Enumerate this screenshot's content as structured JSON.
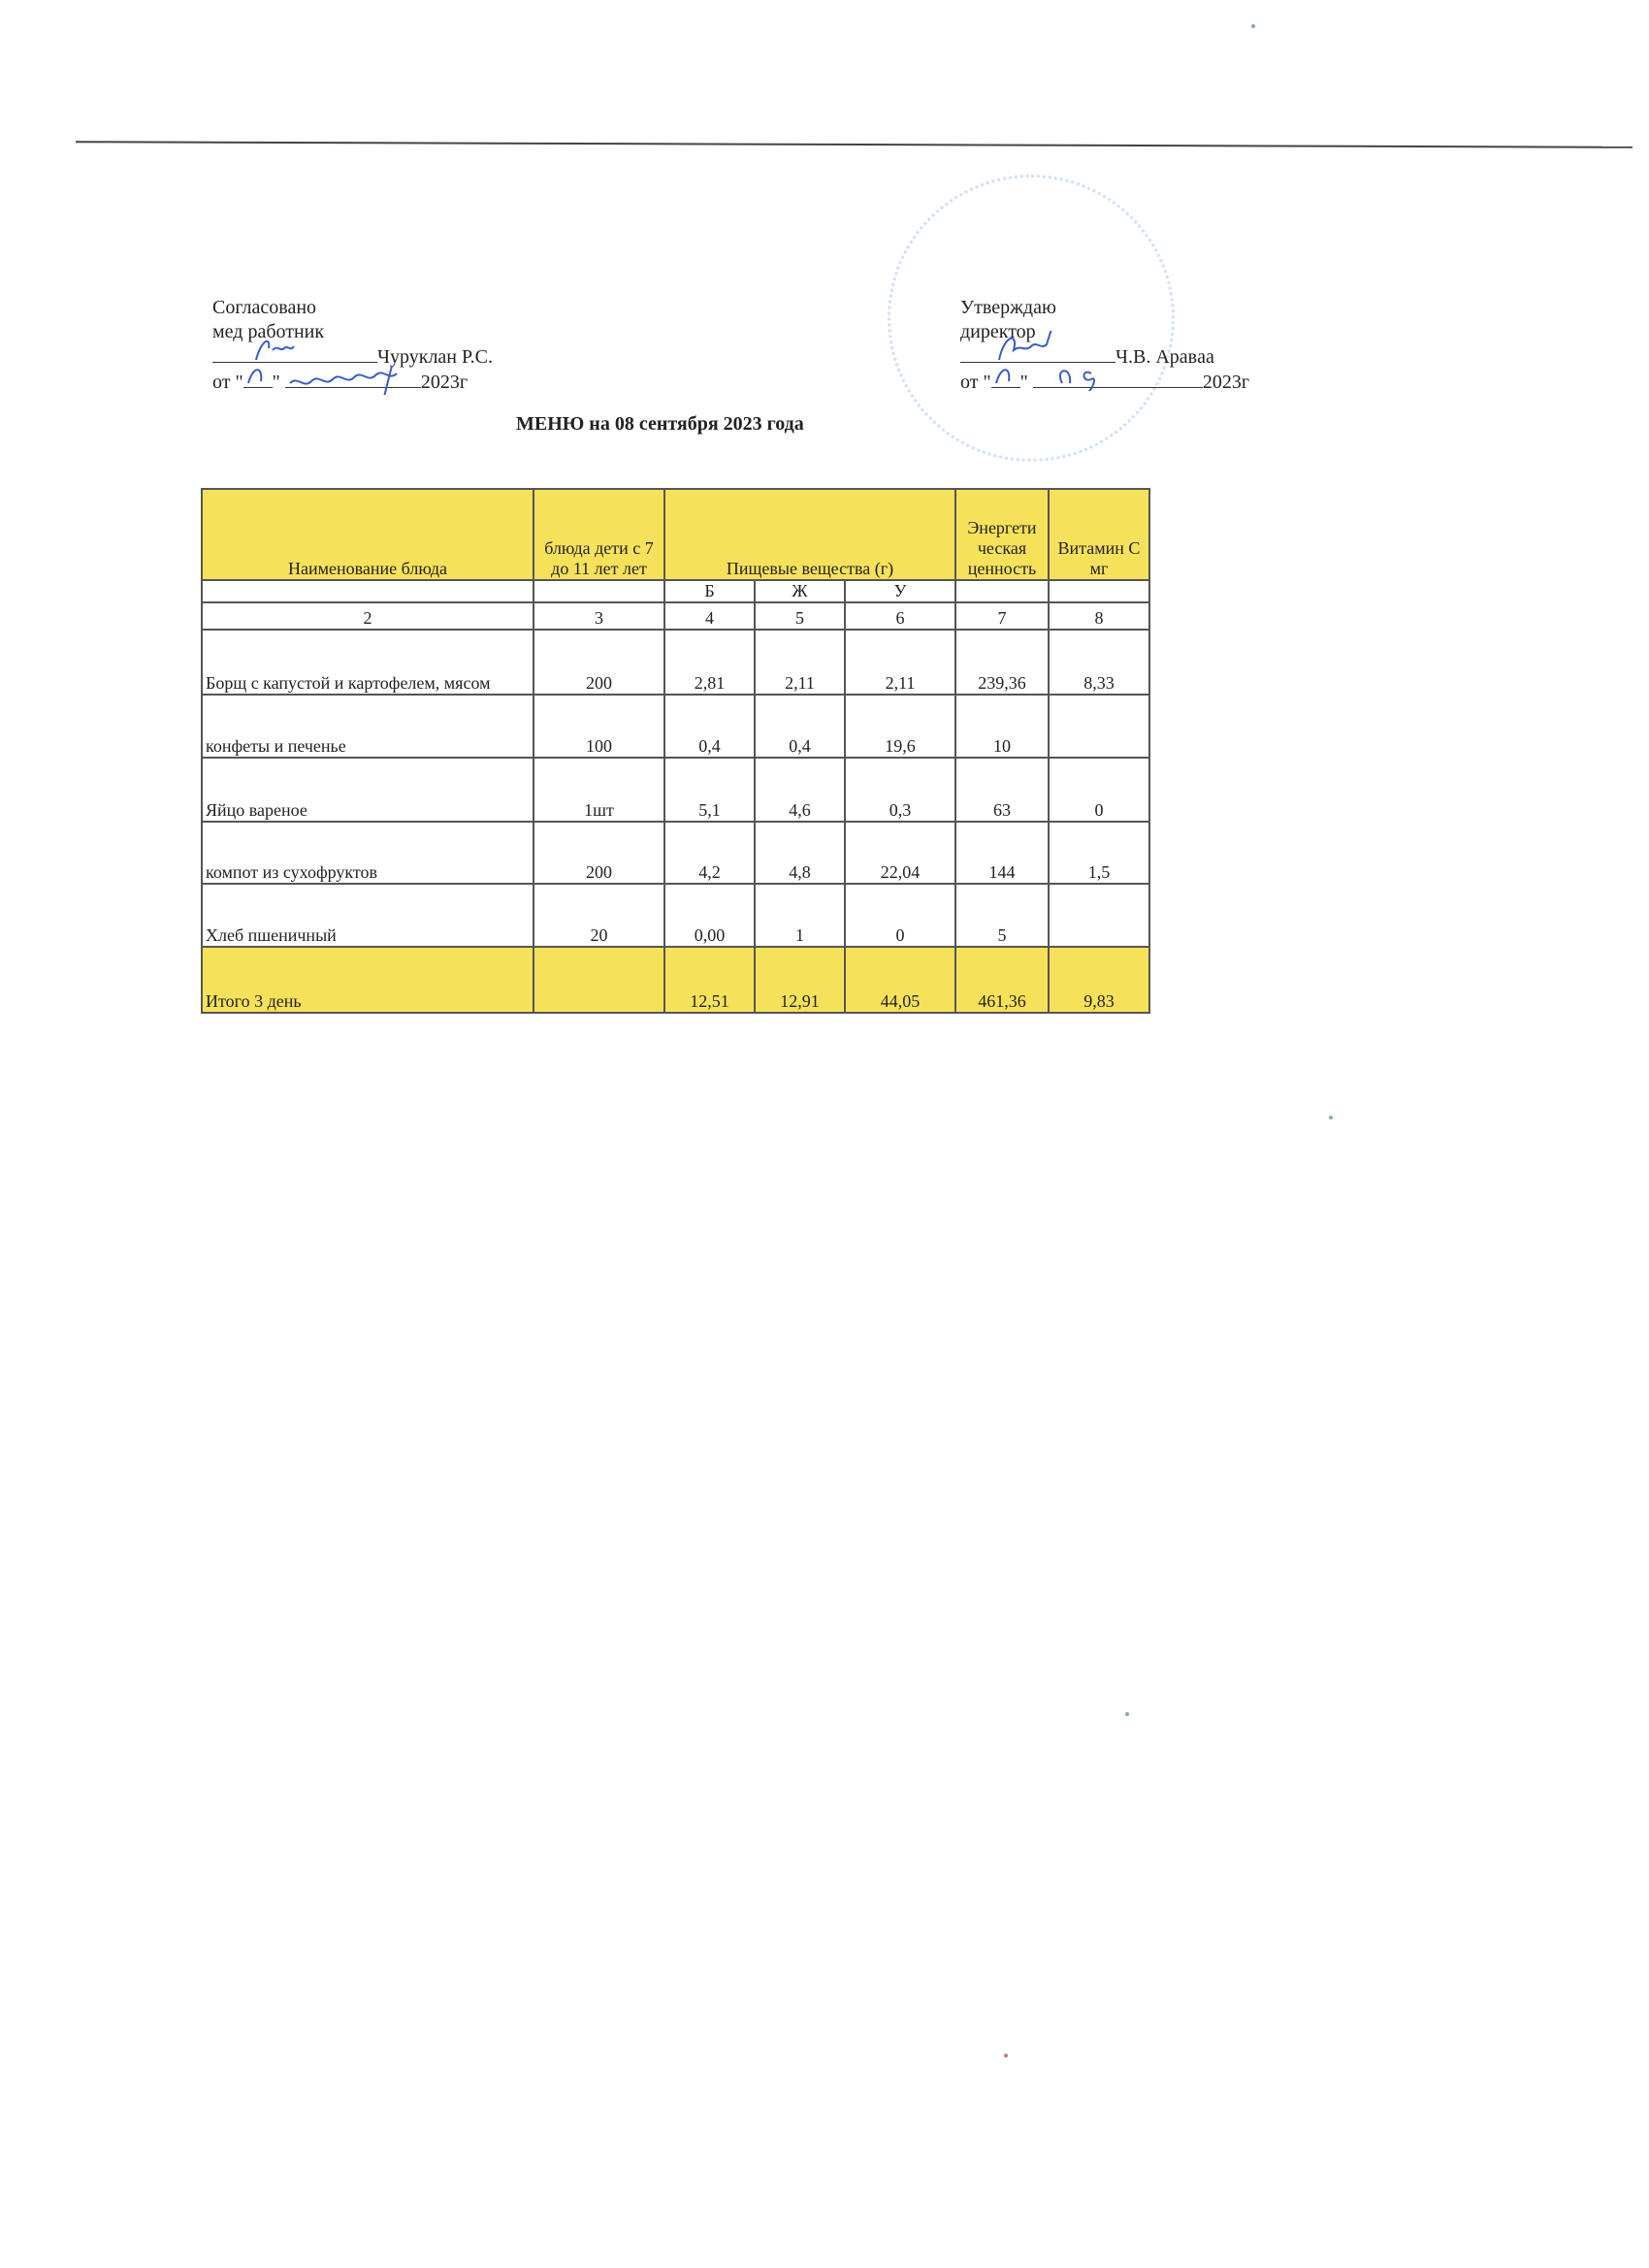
{
  "left_block": {
    "line1": "Согласовано",
    "line2": "мед работник",
    "name": "Чуруклан Р.С.",
    "date_prefix": "от \"",
    "date_mid": "\"",
    "year": "2023г"
  },
  "right_block": {
    "line1": "Утверждаю",
    "line2": "директор",
    "name": "Ч.В. Аравaa",
    "date_prefix": "от \"",
    "date_mid": "\"",
    "year": "2023г"
  },
  "title": "МЕНЮ на 08 сентября 2023 года",
  "table": {
    "headers": {
      "name": "Наименование блюда",
      "portion": "блюда  дети с 7 до 11 лет лет",
      "nutrients": "Пищевые вещества (г)",
      "energy": "Энергети ческая ценность",
      "vitamin": "Витамин С  мг"
    },
    "sub": [
      "Б",
      "Ж",
      "У"
    ],
    "numbers": [
      "2",
      "3",
      "4",
      "5",
      "6",
      "7",
      "8"
    ],
    "rows": [
      [
        "Борщ с капустой и картофелем, мясом",
        "200",
        "2,81",
        "2,11",
        "2,11",
        "239,36",
        "8,33"
      ],
      [
        "конфеты и печенье",
        "100",
        "0,4",
        "0,4",
        "19,6",
        "10",
        ""
      ],
      [
        "Яйцо вареное",
        "1шт",
        "5,1",
        "4,6",
        "0,3",
        "63",
        "0"
      ],
      [
        "компот из сухофруктов",
        "200",
        "4,2",
        "4,8",
        "22,04",
        "144",
        "1,5"
      ],
      [
        "Хлеб пшеничный",
        "20",
        "0,00",
        "1",
        "0",
        "5",
        ""
      ]
    ],
    "total": [
      "Итого 3 день",
      "",
      "12,51",
      "12,91",
      "44,05",
      "461,36",
      "9,83"
    ]
  },
  "colors": {
    "header_fill": "#f6e15a",
    "ink": "#3a5bc4"
  }
}
